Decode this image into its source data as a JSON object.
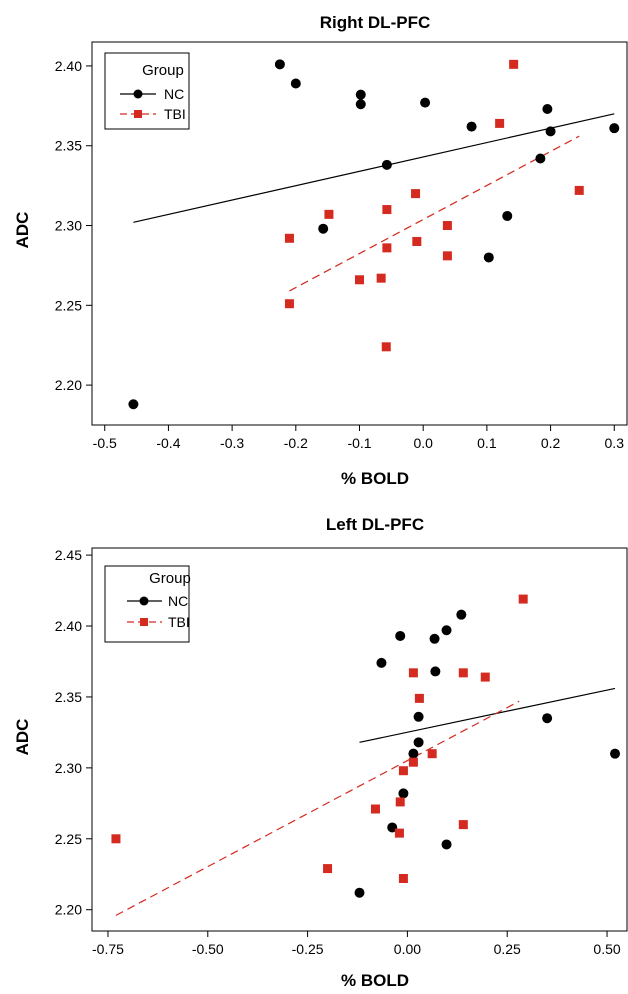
{
  "chart_data": [
    {
      "type": "scatter",
      "title": "Right DL-PFC",
      "xlabel": "% BOLD",
      "ylabel": "ADC",
      "xlim": [
        -0.52,
        0.32
      ],
      "ylim": [
        2.175,
        2.415
      ],
      "xticks": [
        -0.5,
        -0.4,
        -0.3,
        -0.2,
        -0.1,
        0.0,
        0.1,
        0.2,
        0.3
      ],
      "xtick_labels": [
        "-0.5",
        "-0.4",
        "-0.3",
        "-0.2",
        "-0.1",
        "0.0",
        "0.1",
        "0.2",
        "0.3"
      ],
      "yticks": [
        2.2,
        2.25,
        2.3,
        2.35,
        2.4
      ],
      "ytick_labels": [
        "2.20",
        "2.25",
        "2.30",
        "2.35",
        "2.40"
      ],
      "legend": {
        "title": "Group",
        "placement": "top-left"
      },
      "series": [
        {
          "name": "NC",
          "color": "#000000",
          "marker": "circle",
          "line_style": "solid",
          "fit": {
            "x": [
              -0.455,
              0.3
            ],
            "y": [
              2.302,
              2.37
            ]
          },
          "points": [
            [
              -0.225,
              2.401
            ],
            [
              -0.2,
              2.389
            ],
            [
              -0.098,
              2.382
            ],
            [
              -0.098,
              2.376
            ],
            [
              0.003,
              2.377
            ],
            [
              -0.057,
              2.338
            ],
            [
              -0.157,
              2.298
            ],
            [
              0.076,
              2.362
            ],
            [
              0.195,
              2.373
            ],
            [
              0.2,
              2.359
            ],
            [
              0.3,
              2.361
            ],
            [
              0.184,
              2.342
            ],
            [
              0.132,
              2.306
            ],
            [
              0.103,
              2.28
            ],
            [
              -0.455,
              2.188
            ]
          ]
        },
        {
          "name": "TBI",
          "color": "#d42a20",
          "marker": "square",
          "line_style": "dashed",
          "fit": {
            "x": [
              -0.21,
              0.245
            ],
            "y": [
              2.259,
              2.356
            ]
          },
          "points": [
            [
              0.142,
              2.401
            ],
            [
              0.12,
              2.364
            ],
            [
              0.245,
              2.322
            ],
            [
              -0.012,
              2.32
            ],
            [
              -0.057,
              2.31
            ],
            [
              -0.148,
              2.307
            ],
            [
              -0.21,
              2.292
            ],
            [
              -0.057,
              2.286
            ],
            [
              -0.01,
              2.29
            ],
            [
              0.038,
              2.3
            ],
            [
              0.038,
              2.281
            ],
            [
              -0.066,
              2.267
            ],
            [
              -0.1,
              2.266
            ],
            [
              -0.21,
              2.251
            ],
            [
              -0.058,
              2.224
            ]
          ]
        }
      ]
    },
    {
      "type": "scatter",
      "title": "Left DL-PFC",
      "xlabel": "% BOLD",
      "ylabel": "ADC",
      "xlim": [
        -0.79,
        0.55
      ],
      "ylim": [
        2.185,
        2.455
      ],
      "xticks": [
        -0.75,
        -0.5,
        -0.25,
        0.0,
        0.25,
        0.5
      ],
      "xtick_labels": [
        "-0.75",
        "-0.50",
        "-0.25",
        "0.00",
        "0.25",
        "0.50"
      ],
      "yticks": [
        2.2,
        2.25,
        2.3,
        2.35,
        2.4,
        2.45
      ],
      "ytick_labels": [
        "2.20",
        "2.25",
        "2.30",
        "2.35",
        "2.40",
        "2.45"
      ],
      "legend": {
        "title": "Group",
        "placement": "top-left"
      },
      "series": [
        {
          "name": "NC",
          "color": "#000000",
          "marker": "circle",
          "line_style": "solid",
          "fit": {
            "x": [
              -0.12,
              0.52
            ],
            "y": [
              2.318,
              2.356
            ]
          },
          "points": [
            [
              0.135,
              2.408
            ],
            [
              0.098,
              2.397
            ],
            [
              0.068,
              2.391
            ],
            [
              -0.018,
              2.393
            ],
            [
              -0.065,
              2.374
            ],
            [
              0.07,
              2.368
            ],
            [
              0.028,
              2.336
            ],
            [
              0.35,
              2.335
            ],
            [
              0.028,
              2.318
            ],
            [
              0.015,
              2.31
            ],
            [
              0.52,
              2.31
            ],
            [
              -0.01,
              2.282
            ],
            [
              -0.038,
              2.258
            ],
            [
              0.098,
              2.246
            ],
            [
              -0.12,
              2.212
            ]
          ]
        },
        {
          "name": "TBI",
          "color": "#d42a20",
          "marker": "square",
          "line_style": "dashed",
          "fit": {
            "x": [
              -0.73,
              0.28
            ],
            "y": [
              2.196,
              2.347
            ]
          },
          "points": [
            [
              0.29,
              2.419
            ],
            [
              0.015,
              2.367
            ],
            [
              0.14,
              2.367
            ],
            [
              0.195,
              2.364
            ],
            [
              0.03,
              2.349
            ],
            [
              0.062,
              2.31
            ],
            [
              0.015,
              2.304
            ],
            [
              -0.01,
              2.298
            ],
            [
              -0.018,
              2.276
            ],
            [
              -0.08,
              2.271
            ],
            [
              0.14,
              2.26
            ],
            [
              -0.02,
              2.254
            ],
            [
              -0.2,
              2.229
            ],
            [
              -0.01,
              2.222
            ],
            [
              -0.73,
              2.25
            ]
          ]
        }
      ]
    }
  ]
}
